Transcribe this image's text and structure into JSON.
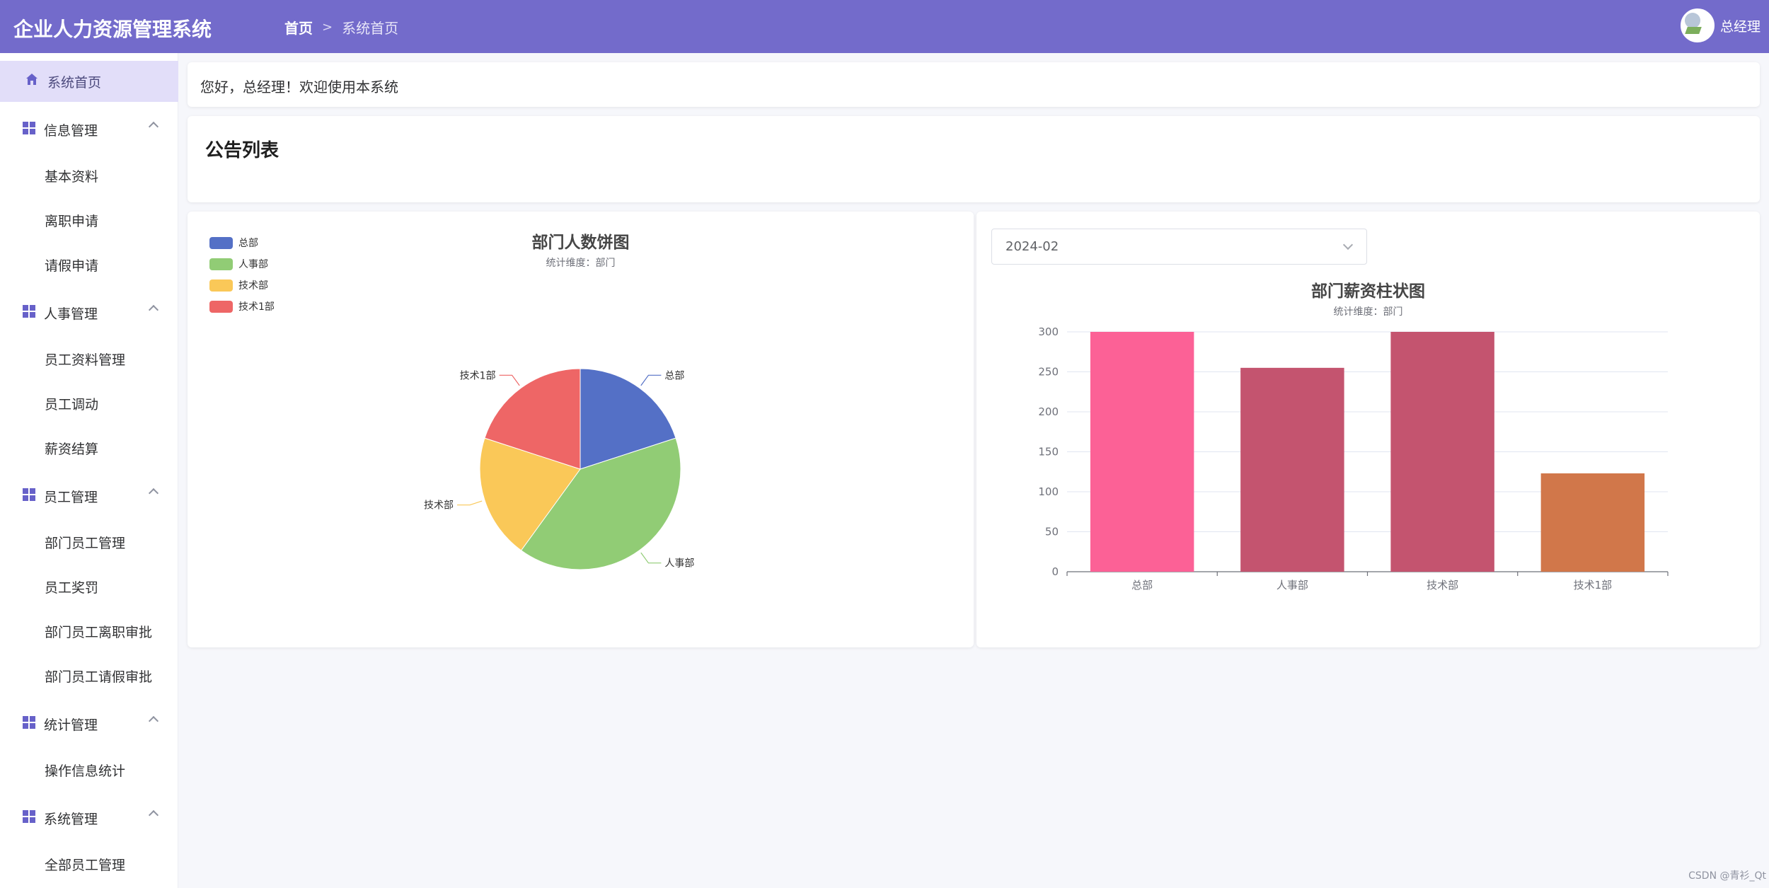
{
  "header": {
    "title": "企业人力资源管理系统",
    "breadcrumb": {
      "home": "首页",
      "current": "系统首页"
    },
    "user_name": "总经理",
    "bg_color": "#736bcb"
  },
  "sidebar": {
    "home": "系统首页",
    "groups": [
      {
        "label": "信息管理",
        "items": [
          "基本资料",
          "离职申请",
          "请假申请"
        ]
      },
      {
        "label": "人事管理",
        "items": [
          "员工资料管理",
          "员工调动",
          "薪资结算"
        ]
      },
      {
        "label": "员工管理",
        "items": [
          "部门员工管理",
          "员工奖罚",
          "部门员工离职审批",
          "部门员工请假审批"
        ]
      },
      {
        "label": "统计管理",
        "items": [
          "操作信息统计"
        ]
      },
      {
        "label": "系统管理",
        "items": [
          "全部员工管理"
        ]
      }
    ]
  },
  "welcome": {
    "text": "您好，总经理！欢迎使用本系统"
  },
  "notice": {
    "title": "公告列表"
  },
  "select": {
    "value": "2024-02"
  },
  "watermark": "CSDN @青衫_Qt",
  "chart_data": [
    {
      "type": "pie",
      "title": "部门人数饼图",
      "subtitle": "统计维度：部门",
      "legend_position": "top-left",
      "series": [
        {
          "name": "总部",
          "value": 2,
          "color": "#5470c6"
        },
        {
          "name": "人事部",
          "value": 4,
          "color": "#91cc75"
        },
        {
          "name": "技术部",
          "value": 2,
          "color": "#fac858"
        },
        {
          "name": "技术1部",
          "value": 2,
          "color": "#ee6666"
        }
      ]
    },
    {
      "type": "bar",
      "title": "部门薪资柱状图",
      "subtitle": "统计维度：部门",
      "categories": [
        "总部",
        "人事部",
        "技术部",
        "技术1部"
      ],
      "values": [
        300,
        255,
        300,
        123
      ],
      "colors": [
        "#fc6196",
        "#c4546f",
        "#c4546f",
        "#d1774a"
      ],
      "ylim": [
        0,
        300
      ],
      "yticks": [
        0,
        50,
        100,
        150,
        200,
        250,
        300
      ],
      "grid": true
    }
  ]
}
